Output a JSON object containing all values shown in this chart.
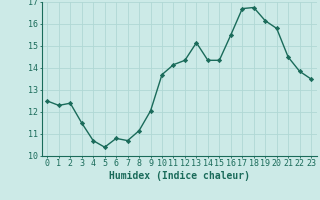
{
  "x": [
    0,
    1,
    2,
    3,
    4,
    5,
    6,
    7,
    8,
    9,
    10,
    11,
    12,
    13,
    14,
    15,
    16,
    17,
    18,
    19,
    20,
    21,
    22,
    23
  ],
  "y": [
    12.5,
    12.3,
    12.4,
    11.5,
    10.7,
    10.4,
    10.8,
    10.7,
    11.15,
    12.05,
    13.7,
    14.15,
    14.35,
    15.15,
    14.35,
    14.35,
    15.5,
    16.7,
    16.75,
    16.15,
    15.8,
    14.5,
    13.85,
    13.5
  ],
  "line_color": "#1a6b5a",
  "marker": "D",
  "marker_size": 2.2,
  "bg_color": "#cceae7",
  "grid_color": "#b0d8d4",
  "xlabel": "Humidex (Indice chaleur)",
  "xlim": [
    -0.5,
    23.5
  ],
  "ylim": [
    10,
    17
  ],
  "yticks": [
    10,
    11,
    12,
    13,
    14,
    15,
    16,
    17
  ],
  "xticks": [
    0,
    1,
    2,
    3,
    4,
    5,
    6,
    7,
    8,
    9,
    10,
    11,
    12,
    13,
    14,
    15,
    16,
    17,
    18,
    19,
    20,
    21,
    22,
    23
  ],
  "xlabel_fontsize": 7,
  "tick_fontsize": 6,
  "line_width": 1.0
}
